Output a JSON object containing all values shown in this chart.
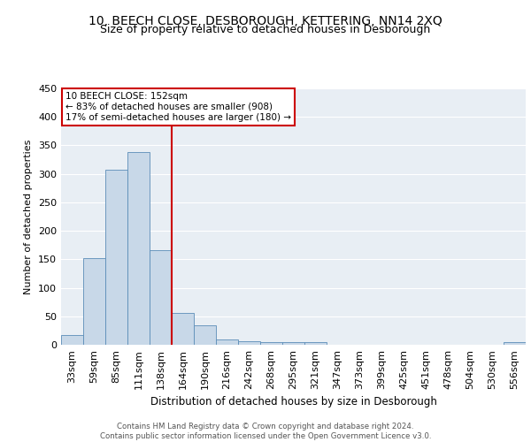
{
  "title": "10, BEECH CLOSE, DESBOROUGH, KETTERING, NN14 2XQ",
  "subtitle": "Size of property relative to detached houses in Desborough",
  "xlabel": "Distribution of detached houses by size in Desborough",
  "ylabel": "Number of detached properties",
  "bar_color": "#c8d8e8",
  "bar_edge_color": "#5b8db8",
  "categories": [
    "33sqm",
    "59sqm",
    "85sqm",
    "111sqm",
    "138sqm",
    "164sqm",
    "190sqm",
    "216sqm",
    "242sqm",
    "268sqm",
    "295sqm",
    "321sqm",
    "347sqm",
    "373sqm",
    "399sqm",
    "425sqm",
    "451sqm",
    "478sqm",
    "504sqm",
    "530sqm",
    "556sqm"
  ],
  "values": [
    17,
    152,
    307,
    338,
    166,
    56,
    34,
    10,
    6,
    5,
    5,
    5,
    0,
    0,
    0,
    0,
    0,
    0,
    0,
    0,
    5
  ],
  "vline_color": "#cc0000",
  "annotation_text": "10 BEECH CLOSE: 152sqm\n← 83% of detached houses are smaller (908)\n17% of semi-detached houses are larger (180) →",
  "annotation_box_color": "#ffffff",
  "annotation_box_edge": "#cc0000",
  "ylim": [
    0,
    450
  ],
  "yticks": [
    0,
    50,
    100,
    150,
    200,
    250,
    300,
    350,
    400,
    450
  ],
  "background_color": "#e8eef4",
  "footer_text": "Contains HM Land Registry data © Crown copyright and database right 2024.\nContains public sector information licensed under the Open Government Licence v3.0.",
  "title_fontsize": 10,
  "subtitle_fontsize": 9
}
